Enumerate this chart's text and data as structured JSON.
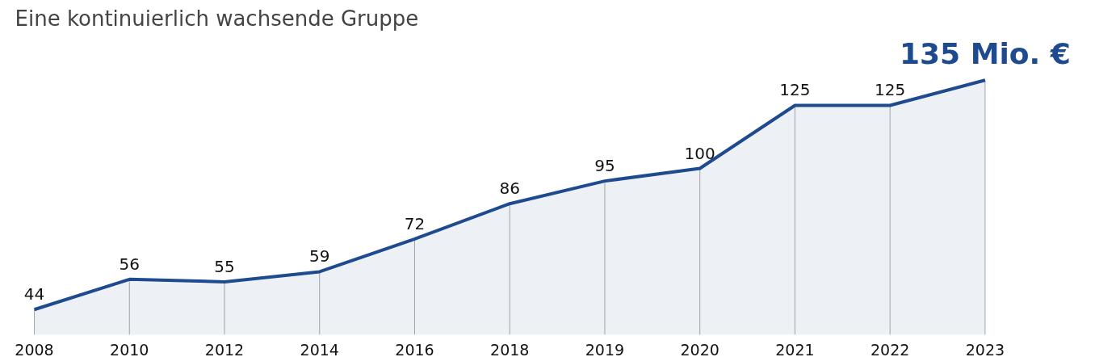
{
  "chart_data": {
    "type": "area",
    "title": "Eine kontinuierlich wachsende Gruppe",
    "categories": [
      "2008",
      "2010",
      "2012",
      "2014",
      "2016",
      "2018",
      "2019",
      "2020",
      "2021",
      "2022",
      "2023"
    ],
    "series": [
      {
        "color": "#1e4a90",
        "values": [
          44,
          56,
          55,
          59,
          72,
          86,
          95,
          100,
          125,
          125,
          135
        ],
        "value_labels": [
          "44",
          "56",
          "55",
          "59",
          "72",
          "86",
          "95",
          "100",
          "125",
          "125",
          "135 Mio. €"
        ]
      }
    ],
    "grid": "x",
    "tick_labels": "x"
  }
}
